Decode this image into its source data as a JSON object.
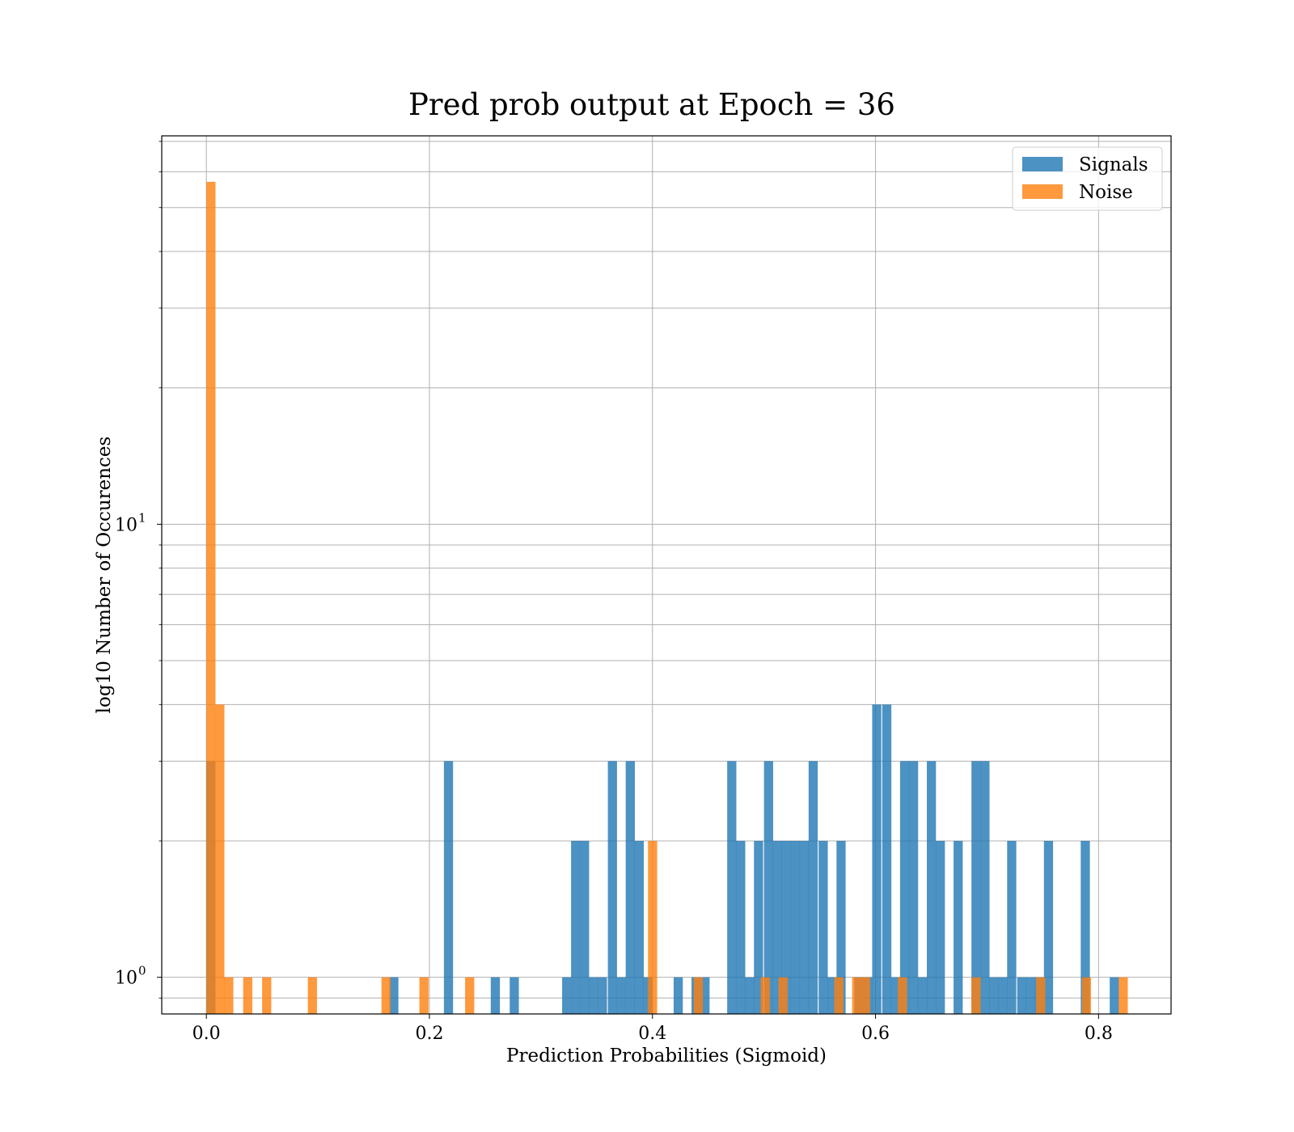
{
  "chart_data": {
    "type": "bar",
    "title": "Pred prob output at Epoch = 36",
    "xlabel": "Prediction Probabilities (Sigmoid)",
    "ylabel": "log10 Number of Occurences",
    "xlim": [
      -0.04,
      0.865
    ],
    "ylim": [
      0.83,
      72
    ],
    "yscale": "log",
    "xticks": [
      0.0,
      0.2,
      0.4,
      0.6,
      0.8
    ],
    "xtick_labels": [
      "0.0",
      "0.2",
      "0.4",
      "0.6",
      "0.8"
    ],
    "ytick_major": [
      1,
      10
    ],
    "ytick_major_base": "10",
    "ytick_major_exp": [
      "0",
      "1"
    ],
    "ytick_minor": [
      0.9,
      2,
      3,
      4,
      5,
      6,
      7,
      8,
      9,
      20,
      30,
      40,
      50,
      60,
      70
    ],
    "grid": true,
    "legend_position": "top-right",
    "series": [
      {
        "name": "Signals",
        "color": "#1f77b4",
        "alpha": 0.8,
        "bin_width": 0.0082,
        "bins": [
          [
            0.0,
            3
          ],
          [
            0.164,
            1
          ],
          [
            0.213,
            3
          ],
          [
            0.255,
            1
          ],
          [
            0.272,
            1
          ],
          [
            0.319,
            1
          ],
          [
            0.327,
            2
          ],
          [
            0.335,
            2
          ],
          [
            0.343,
            1
          ],
          [
            0.351,
            1
          ],
          [
            0.36,
            3
          ],
          [
            0.368,
            1
          ],
          [
            0.376,
            3
          ],
          [
            0.384,
            2
          ],
          [
            0.392,
            1
          ],
          [
            0.419,
            1
          ],
          [
            0.435,
            1
          ],
          [
            0.443,
            1
          ],
          [
            0.467,
            3
          ],
          [
            0.475,
            2
          ],
          [
            0.483,
            1
          ],
          [
            0.491,
            2
          ],
          [
            0.5,
            3
          ],
          [
            0.508,
            2
          ],
          [
            0.516,
            2
          ],
          [
            0.524,
            2
          ],
          [
            0.532,
            2
          ],
          [
            0.54,
            3
          ],
          [
            0.549,
            2
          ],
          [
            0.557,
            1
          ],
          [
            0.565,
            2
          ],
          [
            0.581,
            1
          ],
          [
            0.589,
            1
          ],
          [
            0.597,
            4
          ],
          [
            0.606,
            4
          ],
          [
            0.614,
            1
          ],
          [
            0.622,
            3
          ],
          [
            0.63,
            3
          ],
          [
            0.638,
            1
          ],
          [
            0.646,
            3
          ],
          [
            0.654,
            2
          ],
          [
            0.67,
            2
          ],
          [
            0.686,
            3
          ],
          [
            0.694,
            3
          ],
          [
            0.702,
            1
          ],
          [
            0.71,
            1
          ],
          [
            0.718,
            2
          ],
          [
            0.727,
            1
          ],
          [
            0.735,
            1
          ],
          [
            0.743,
            1
          ],
          [
            0.751,
            2
          ],
          [
            0.784,
            2
          ],
          [
            0.81,
            1
          ]
        ]
      },
      {
        "name": "Noise",
        "color": "#ff7f0e",
        "alpha": 0.8,
        "bin_width": 0.0082,
        "bins": [
          [
            0.0,
            57
          ],
          [
            0.008,
            4
          ],
          [
            0.016,
            1
          ],
          [
            0.033,
            1
          ],
          [
            0.05,
            1
          ],
          [
            0.091,
            1
          ],
          [
            0.157,
            1
          ],
          [
            0.191,
            1
          ],
          [
            0.232,
            1
          ],
          [
            0.396,
            2
          ],
          [
            0.437,
            1
          ],
          [
            0.497,
            1
          ],
          [
            0.513,
            1
          ],
          [
            0.563,
            1
          ],
          [
            0.579,
            1
          ],
          [
            0.587,
            1
          ],
          [
            0.62,
            1
          ],
          [
            0.686,
            1
          ],
          [
            0.744,
            1
          ],
          [
            0.785,
            1
          ],
          [
            0.818,
            1
          ]
        ]
      }
    ]
  }
}
